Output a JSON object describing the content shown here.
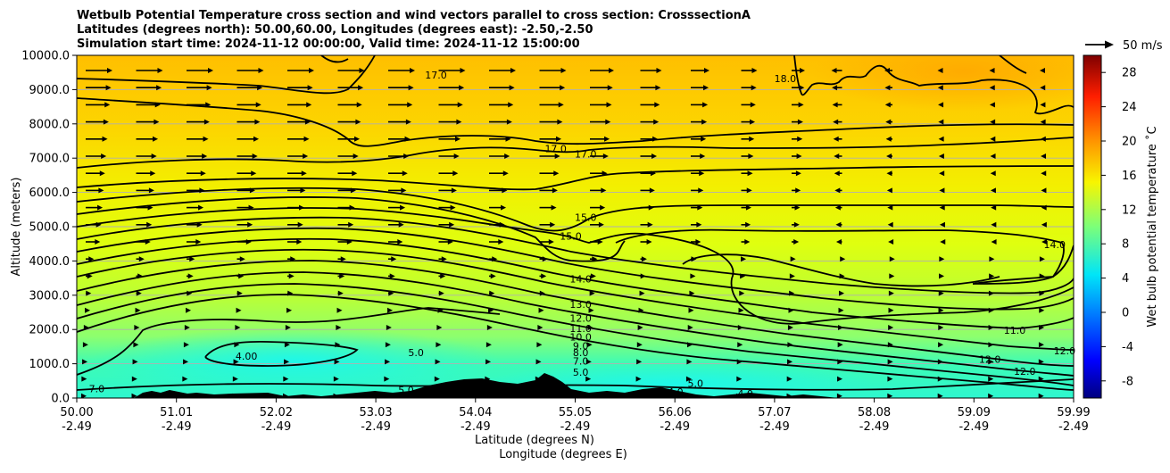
{
  "chart_data": {
    "type": "heatmap",
    "title_lines": [
      "Wetbulb Potential Temperature cross section and wind vectors parallel to cross section: CrosssectionA",
      "Latitudes (degrees north): 50.00,60.00, Longitudes (degrees east): -2.50,-2.50",
      "Simulation start time: 2024-11-12 00:00:00, Valid time: 2024-11-12 15:00:00"
    ],
    "xlabel": "Latitude (degrees N)",
    "xlabel2": "Longitude (degrees E)",
    "ylabel": "Altitude (meters)",
    "xlim": [
      50.0,
      59.99
    ],
    "ylim": [
      0,
      10000
    ],
    "x_ticks": [
      {
        "lat": "50.00",
        "lon": "-2.49"
      },
      {
        "lat": "51.01",
        "lon": "-2.49"
      },
      {
        "lat": "52.02",
        "lon": "-2.49"
      },
      {
        "lat": "53.03",
        "lon": "-2.49"
      },
      {
        "lat": "54.04",
        "lon": "-2.49"
      },
      {
        "lat": "55.05",
        "lon": "-2.49"
      },
      {
        "lat": "56.06",
        "lon": "-2.49"
      },
      {
        "lat": "57.07",
        "lon": "-2.49"
      },
      {
        "lat": "58.08",
        "lon": "-2.49"
      },
      {
        "lat": "59.09",
        "lon": "-2.49"
      },
      {
        "lat": "59.99",
        "lon": "-2.49"
      }
    ],
    "y_ticks": [
      "0.0",
      "1000.0",
      "2000.0",
      "3000.0",
      "4000.0",
      "5000.0",
      "6000.0",
      "7000.0",
      "8000.0",
      "9000.0",
      "10000.0"
    ],
    "y_tick_values": [
      0,
      1000,
      2000,
      3000,
      4000,
      5000,
      6000,
      7000,
      8000,
      9000,
      10000
    ],
    "grid": "horizontal",
    "quiver_key": "50 m/s",
    "colorbar": {
      "label": "Wet bulb potential temperature ˚C",
      "range": [
        -10,
        30
      ],
      "ticks": [
        "-8",
        "-4",
        "0",
        "4",
        "8",
        "12",
        "16",
        "20",
        "24",
        "28"
      ],
      "tick_values": [
        -8,
        -4,
        0,
        4,
        8,
        12,
        16,
        20,
        24,
        28
      ]
    },
    "contour_labels": [
      {
        "text": "17.0",
        "lat": 53.6,
        "alt": 9350
      },
      {
        "text": "18.0",
        "lat": 57.1,
        "alt": 9250
      },
      {
        "text": "17.0",
        "lat": 54.8,
        "alt": 7200
      },
      {
        "text": "17.0",
        "lat": 55.1,
        "alt": 7050
      },
      {
        "text": "15.0",
        "lat": 55.1,
        "alt": 5200
      },
      {
        "text": "15.0",
        "lat": 54.95,
        "alt": 4650
      },
      {
        "text": "14.0",
        "lat": 55.05,
        "alt": 3400
      },
      {
        "text": "14.0",
        "lat": 59.8,
        "alt": 4400
      },
      {
        "text": "13.0",
        "lat": 55.05,
        "alt": 2650
      },
      {
        "text": "12.0",
        "lat": 55.05,
        "alt": 2250
      },
      {
        "text": "11.0",
        "lat": 55.05,
        "alt": 1950
      },
      {
        "text": "10.0",
        "lat": 55.05,
        "alt": 1700
      },
      {
        "text": "9.0",
        "lat": 55.05,
        "alt": 1450
      },
      {
        "text": "8.0",
        "lat": 55.05,
        "alt": 1250
      },
      {
        "text": "7.0",
        "lat": 55.05,
        "alt": 1000
      },
      {
        "text": "5.0",
        "lat": 55.05,
        "alt": 680
      },
      {
        "text": "4.00",
        "lat": 51.7,
        "alt": 1150
      },
      {
        "text": "5.0",
        "lat": 53.4,
        "alt": 1250
      },
      {
        "text": "11.0",
        "lat": 59.4,
        "alt": 1900
      },
      {
        "text": "12.0",
        "lat": 59.15,
        "alt": 1050
      },
      {
        "text": "12.0",
        "lat": 59.5,
        "alt": 700
      },
      {
        "text": "12.0",
        "lat": 59.9,
        "alt": 1300
      },
      {
        "text": "7.0",
        "lat": 50.2,
        "alt": 200
      },
      {
        "text": "5.0",
        "lat": 53.3,
        "alt": 150
      },
      {
        "text": "5.0",
        "lat": 56.2,
        "alt": 350
      },
      {
        "text": "4.0",
        "lat": 56.0,
        "alt": 100
      },
      {
        "text": "4.0",
        "lat": 56.7,
        "alt": 50
      }
    ]
  }
}
